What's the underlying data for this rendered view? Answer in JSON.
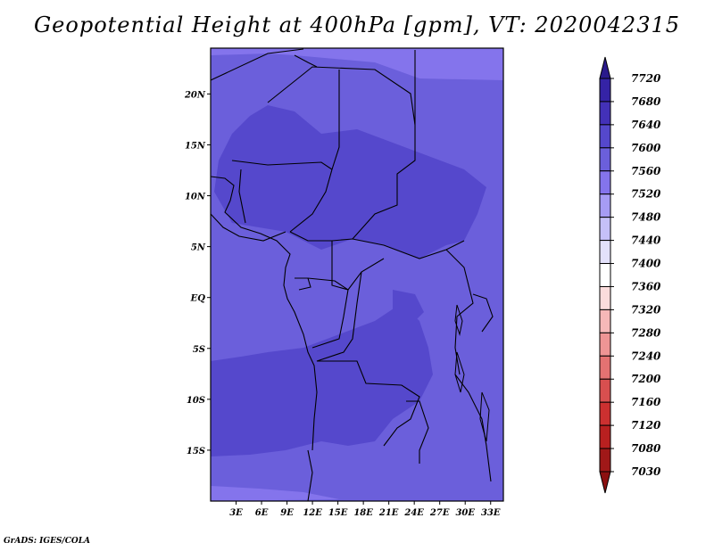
{
  "title": "Geopotential Height at 400hPa [gpm], VT: 2020042315",
  "footer": "GrADS: IGES/COLA",
  "map": {
    "lon_range": [
      0,
      34.5
    ],
    "lat_range": [
      -20,
      24.5
    ],
    "lon_ticks": [
      {
        "value": 3,
        "label": "3E"
      },
      {
        "value": 6,
        "label": "6E"
      },
      {
        "value": 9,
        "label": "9E"
      },
      {
        "value": 12,
        "label": "12E"
      },
      {
        "value": 15,
        "label": "15E"
      },
      {
        "value": 18,
        "label": "18E"
      },
      {
        "value": 21,
        "label": "21E"
      },
      {
        "value": 24,
        "label": "24E"
      },
      {
        "value": 27,
        "label": "27E"
      },
      {
        "value": 30,
        "label": "30E"
      },
      {
        "value": 33,
        "label": "33E"
      }
    ],
    "lat_ticks": [
      {
        "value": 20,
        "label": "20N"
      },
      {
        "value": 15,
        "label": "15N"
      },
      {
        "value": 10,
        "label": "10N"
      },
      {
        "value": 5,
        "label": "5N"
      },
      {
        "value": 0,
        "label": "EQ"
      },
      {
        "value": -5,
        "label": "5S"
      },
      {
        "value": -10,
        "label": "10S"
      },
      {
        "value": -15,
        "label": "15S"
      }
    ],
    "field_colors": {
      "band_7520_7560": "#6b5fdb",
      "band_7560_7600": "#5548cc",
      "band_7480_7520": "#8474ec"
    }
  },
  "colorbar": {
    "levels": [
      "7720",
      "7680",
      "7640",
      "7600",
      "7560",
      "7520",
      "7480",
      "7440",
      "7400",
      "7360",
      "7320",
      "7280",
      "7240",
      "7200",
      "7160",
      "7120",
      "7080",
      "7030"
    ],
    "colors": [
      "#2a1a8c",
      "#3523a6",
      "#4331b8",
      "#5548cc",
      "#6b5fdb",
      "#8474ec",
      "#a69cf4",
      "#c5c0f8",
      "#e3e1fb",
      "#ffffff",
      "#fbdcdc",
      "#f6b8b8",
      "#ee9595",
      "#e47272",
      "#d84f4f",
      "#cc3030",
      "#b82020",
      "#a01818",
      "#8c1010"
    ]
  }
}
